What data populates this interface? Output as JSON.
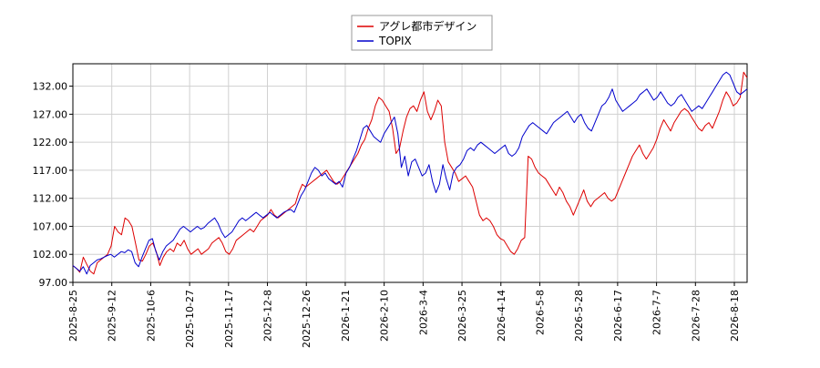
{
  "chart_data": {
    "type": "line",
    "title": "",
    "xlabel": "",
    "ylabel": "",
    "ylim": [
      97,
      136
    ],
    "yticks": [
      "97.00",
      "102.00",
      "107.00",
      "112.00",
      "117.00",
      "122.00",
      "127.00",
      "132.00"
    ],
    "xticks": [
      "2025-8-25",
      "2025-9-12",
      "2025-10-6",
      "2025-10-27",
      "2025-11-17",
      "2025-12-8",
      "2025-12-26",
      "2026-1-21",
      "2026-2-10",
      "2026-3-4",
      "2026-3-25",
      "2026-4-14",
      "2026-5-8",
      "2026-5-28",
      "2026-6-17",
      "2026-7-7",
      "2026-7-28",
      "2026-8-18"
    ],
    "grid": true,
    "legend_position": "top-center",
    "series": [
      {
        "name": "アグレ都市デザイン",
        "color": "#dd0000",
        "values": [
          100.0,
          99.5,
          98.8,
          101.5,
          100.2,
          99.0,
          98.5,
          100.5,
          101.0,
          101.5,
          102.0,
          103.5,
          107.0,
          106.0,
          105.5,
          108.5,
          108.0,
          107.0,
          104.0,
          101.0,
          100.8,
          102.0,
          103.5,
          104.0,
          102.5,
          100.0,
          101.5,
          102.5,
          103.0,
          102.5,
          104.0,
          103.5,
          104.5,
          103.0,
          102.0,
          102.5,
          103.0,
          102.0,
          102.5,
          103.0,
          104.0,
          104.5,
          105.0,
          104.0,
          102.5,
          102.0,
          103.0,
          104.5,
          105.0,
          105.5,
          106.0,
          106.5,
          106.0,
          107.0,
          108.0,
          108.5,
          109.0,
          110.0,
          109.0,
          108.5,
          109.0,
          109.5,
          110.0,
          110.5,
          111.0,
          113.0,
          114.5,
          114.0,
          114.5,
          115.0,
          115.5,
          116.0,
          116.5,
          117.0,
          116.0,
          115.0,
          114.5,
          115.0,
          116.0,
          117.0,
          118.0,
          119.0,
          120.0,
          121.5,
          122.5,
          124.5,
          126.0,
          128.5,
          130.0,
          129.5,
          128.5,
          127.5,
          124.5,
          120.0,
          121.0,
          124.0,
          126.5,
          128.0,
          128.5,
          127.5,
          129.5,
          131.0,
          127.5,
          126.0,
          127.5,
          129.5,
          128.5,
          122.0,
          118.5,
          117.5,
          116.5,
          115.0,
          115.5,
          116.0,
          115.0,
          114.0,
          111.5,
          109.0,
          108.0,
          108.5,
          108.0,
          107.0,
          105.5,
          104.8,
          104.5,
          103.5,
          102.5,
          102.0,
          103.0,
          104.5,
          105.0,
          119.5,
          119.0,
          117.5,
          116.5,
          116.0,
          115.5,
          114.5,
          113.5,
          112.5,
          114.0,
          113.0,
          111.5,
          110.5,
          109.0,
          110.5,
          112.0,
          113.5,
          111.5,
          110.5,
          111.5,
          112.0,
          112.5,
          113.0,
          112.0,
          111.5,
          112.0,
          113.5,
          115.0,
          116.5,
          118.0,
          119.5,
          120.5,
          121.5,
          120.0,
          119.0,
          120.0,
          121.0,
          122.5,
          124.5,
          126.0,
          125.0,
          124.0,
          125.5,
          126.5,
          127.5,
          128.0,
          127.5,
          126.5,
          125.5,
          124.5,
          124.0,
          125.0,
          125.5,
          124.5,
          126.0,
          127.5,
          129.5,
          131.0,
          130.0,
          128.5,
          129.0,
          130.0,
          134.5,
          133.5
        ]
      },
      {
        "name": "TOPIX",
        "color": "#0000cc",
        "values": [
          100.0,
          99.5,
          99.0,
          99.8,
          98.5,
          100.0,
          100.5,
          101.0,
          101.2,
          101.5,
          101.8,
          102.0,
          101.5,
          102.0,
          102.5,
          102.3,
          102.8,
          102.5,
          100.5,
          99.8,
          101.5,
          103.0,
          104.5,
          104.8,
          102.5,
          101.0,
          102.5,
          103.5,
          104.0,
          104.5,
          105.5,
          106.5,
          107.0,
          106.5,
          106.0,
          106.5,
          107.0,
          106.5,
          106.8,
          107.5,
          108.0,
          108.5,
          107.5,
          106.0,
          105.0,
          105.5,
          106.0,
          107.0,
          108.0,
          108.5,
          108.0,
          108.5,
          109.0,
          109.5,
          109.0,
          108.5,
          109.0,
          109.5,
          109.0,
          108.5,
          109.0,
          109.5,
          109.8,
          110.0,
          109.5,
          111.0,
          112.5,
          113.5,
          115.0,
          116.5,
          117.5,
          117.0,
          116.0,
          116.5,
          115.5,
          115.0,
          114.5,
          115.0,
          114.0,
          116.5,
          117.5,
          119.0,
          120.5,
          122.5,
          124.5,
          125.0,
          124.0,
          123.0,
          122.5,
          122.0,
          123.5,
          124.5,
          125.5,
          126.5,
          123.5,
          117.5,
          119.5,
          116.0,
          118.5,
          119.0,
          117.5,
          116.0,
          116.5,
          118.0,
          115.0,
          113.0,
          114.5,
          118.0,
          115.5,
          113.5,
          116.5,
          117.5,
          118.0,
          119.0,
          120.5,
          121.0,
          120.5,
          121.5,
          122.0,
          121.5,
          121.0,
          120.5,
          120.0,
          120.5,
          121.0,
          121.5,
          120.0,
          119.5,
          120.0,
          121.0,
          123.0,
          124.0,
          125.0,
          125.5,
          125.0,
          124.5,
          124.0,
          123.5,
          124.5,
          125.5,
          126.0,
          126.5,
          127.0,
          127.5,
          126.5,
          125.5,
          126.5,
          127.0,
          125.5,
          124.5,
          124.0,
          125.5,
          127.0,
          128.5,
          129.0,
          130.0,
          131.5,
          129.5,
          128.5,
          127.5,
          128.0,
          128.5,
          129.0,
          129.5,
          130.5,
          131.0,
          131.5,
          130.5,
          129.5,
          130.0,
          131.0,
          130.0,
          129.0,
          128.5,
          129.0,
          130.0,
          130.5,
          129.5,
          128.5,
          127.5,
          128.0,
          128.5,
          128.0,
          129.0,
          130.0,
          131.0,
          132.0,
          133.0,
          134.0,
          134.5,
          134.0,
          132.5,
          131.0,
          130.5,
          131.0,
          131.5
        ]
      }
    ]
  }
}
